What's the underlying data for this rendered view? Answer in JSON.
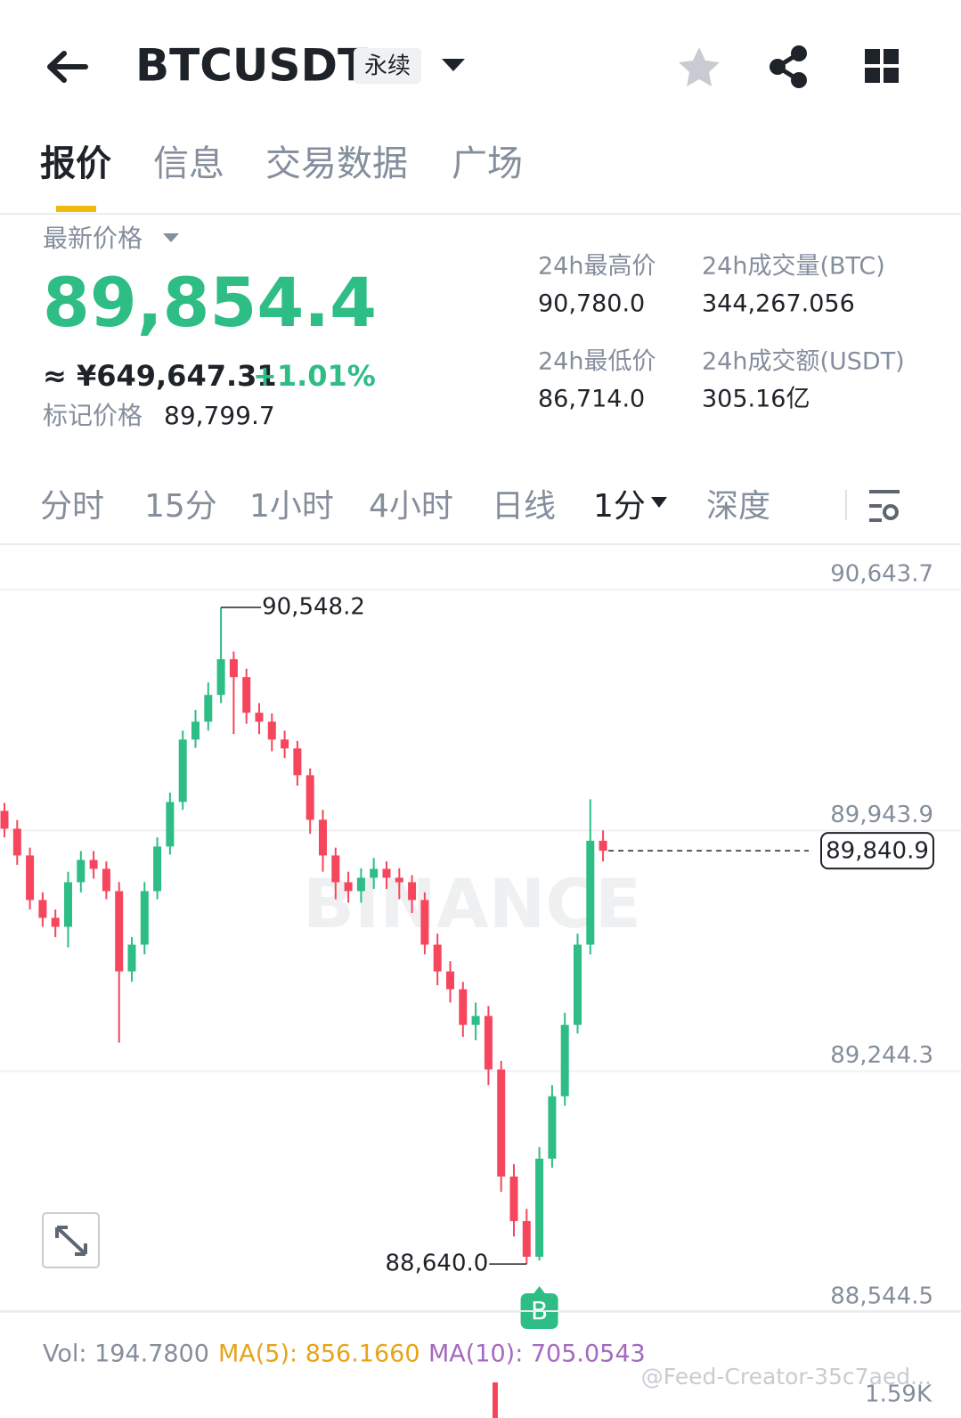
{
  "header": {
    "title": "BTCUSDT",
    "badge": "永续"
  },
  "tabs": [
    "报价",
    "信息",
    "交易数据",
    "广场"
  ],
  "ticker": {
    "last_price_label": "最新价格",
    "last_price": "89,854.4",
    "cny": "≈ ¥649,647.31",
    "change": "+1.01%",
    "mark_label": "标记价格",
    "mark_price": "89,799.7",
    "stats": [
      {
        "label": "24h最高价",
        "value": "90,780.0"
      },
      {
        "label": "24h成交量(BTC)",
        "value": "344,267.056"
      },
      {
        "label": "24h最低价",
        "value": "86,714.0"
      },
      {
        "label": "24h成交额(USDT)",
        "value": "305.16亿"
      }
    ]
  },
  "intervals": [
    "分时",
    "15分",
    "1小时",
    "4小时",
    "日线",
    "1分",
    "深度"
  ],
  "chart_data": {
    "type": "candlestick",
    "watermark": "BINANCE",
    "up_color": "#2ebd85",
    "down_color": "#f6465d",
    "ylim": [
      88503.0,
      90729.2
    ],
    "yticks": [
      {
        "value": 90643.7,
        "label": "90,643.7"
      },
      {
        "value": 89943.9,
        "label": "89,943.9"
      },
      {
        "value": 89244.3,
        "label": "89,244.3"
      },
      {
        "value": 88544.5,
        "label": "88,544.5"
      }
    ],
    "open": [
      89956.9,
      89905.0,
      89827.3,
      89697.7,
      89645.9,
      89619.9,
      89749.5,
      89814.3,
      89788.4,
      89723.6,
      89490.3,
      89568.1,
      89723.6,
      89853.2,
      89982.8,
      90164.2,
      90216.1,
      90293.8,
      90397.5,
      90345.6,
      90242.0,
      90216.1,
      90164.2,
      90138.3,
      90060.5,
      89931.0,
      89827.3,
      89749.5,
      89723.6,
      89762.5,
      89788.4,
      89762.5,
      89749.5,
      89697.7,
      89568.1,
      89490.3,
      89438.5,
      89334.8,
      89360.7,
      89205.3,
      88894.2,
      88764.6,
      88661.0,
      88946.1,
      89127.5,
      89334.8,
      89568.1,
      89870.0
    ],
    "high": [
      89980,
      89930,
      89850,
      89720,
      89670,
      89780,
      89840,
      89840,
      89810,
      89750,
      89590,
      89750,
      89880,
      90010,
      90190,
      90250,
      90330,
      90548.2,
      90420,
      90370,
      90270,
      90240,
      90190,
      90160,
      90080,
      89960,
      89850,
      89780,
      89790,
      89820,
      89810,
      89790,
      89770,
      89720,
      89600,
      89520,
      89460,
      89400,
      89390,
      89230,
      88930,
      88800,
      88980,
      89160,
      89370,
      89600,
      89990.6,
      89900
    ],
    "low": [
      89880,
      89800,
      89670,
      89620,
      89590,
      89560,
      89720,
      89760,
      89700,
      89283.0,
      89460,
      89540,
      89700,
      89830,
      89960,
      90140,
      90190,
      90270,
      90180,
      90210,
      90180,
      90130,
      90110,
      90030,
      89890,
      89780,
      89700,
      89690,
      89690,
      89730,
      89730,
      89700,
      89660,
      89540,
      89450,
      89400,
      89300,
      89290,
      89160,
      88850,
      88720,
      88640.0,
      88650,
      88920,
      89100,
      89310,
      89540,
      89810
    ],
    "close": [
      89905.0,
      89827.3,
      89697.7,
      89645.9,
      89619.9,
      89749.5,
      89814.3,
      89788.4,
      89723.6,
      89490.3,
      89568.1,
      89723.6,
      89853.2,
      89982.8,
      90164.2,
      90216.1,
      90293.8,
      90397.5,
      90345.6,
      90242.0,
      90216.1,
      90164.2,
      90138.3,
      90060.5,
      89931.0,
      89827.3,
      89749.5,
      89723.6,
      89762.5,
      89788.4,
      89762.5,
      89749.5,
      89697.7,
      89568.1,
      89490.3,
      89438.5,
      89334.8,
      89360.7,
      89205.3,
      88894.2,
      88764.6,
      88661.0,
      88946.1,
      89127.5,
      89334.8,
      89568.1,
      89870.0,
      89840.9
    ],
    "high_marker": {
      "value": 90548.2,
      "label": "90,548.2"
    },
    "low_marker": {
      "value": 88640.0,
      "label": "88,640.0"
    },
    "last_price": {
      "value": 89840.9,
      "label": "89,840.9"
    },
    "trade_marker": "B"
  },
  "volume": {
    "vol": "Vol: 194.7800",
    "ma5": "MA(5): 856.1660",
    "ma10": "MA(10): 705.0543",
    "axis_label": "1.59K"
  },
  "credit": "@Feed-Creator-35c7aed..."
}
